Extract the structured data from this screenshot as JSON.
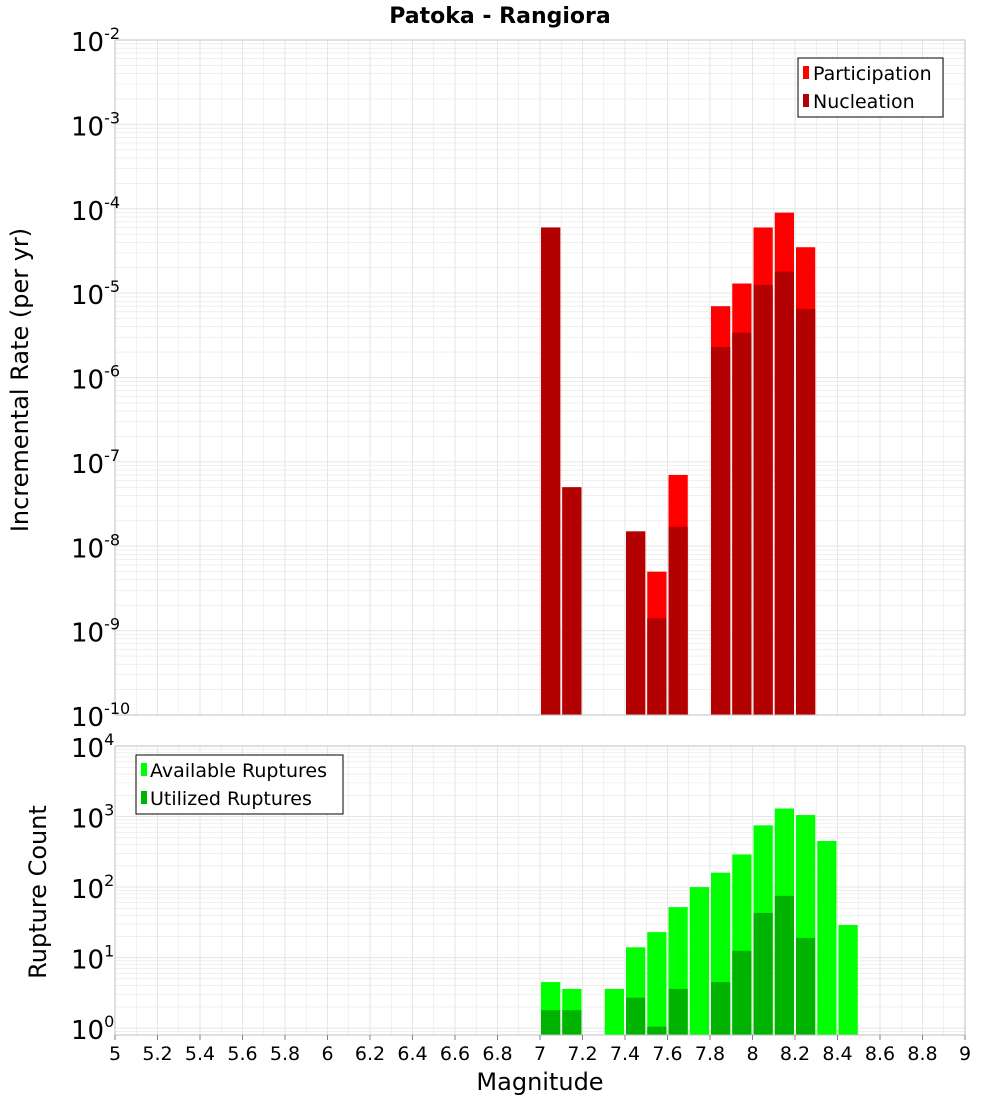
{
  "title": "Patoka - Rangiora",
  "colors": {
    "participation": "#ff0000",
    "nucleation": "#b30000",
    "available": "#00ff00",
    "utilized": "#00b300",
    "grid": "#e6e6e6",
    "frame": "#bfbfbf"
  },
  "chart_data": [
    {
      "type": "bar",
      "scale": "log",
      "ylabel": "Incremental Rate (per yr)",
      "ylim": [
        1e-10,
        0.01
      ],
      "y_ticks": [
        {
          "base": "10",
          "exp": "-10",
          "value": 1e-10
        },
        {
          "base": "10",
          "exp": "-9",
          "value": 1e-09
        },
        {
          "base": "10",
          "exp": "-8",
          "value": 1e-08
        },
        {
          "base": "10",
          "exp": "-7",
          "value": 1e-07
        },
        {
          "base": "10",
          "exp": "-6",
          "value": 1e-06
        },
        {
          "base": "10",
          "exp": "-5",
          "value": 1e-05
        },
        {
          "base": "10",
          "exp": "-4",
          "value": 0.0001
        },
        {
          "base": "10",
          "exp": "-3",
          "value": 0.001
        },
        {
          "base": "10",
          "exp": "-2",
          "value": 0.01
        }
      ],
      "legend_position": "top-right",
      "grid": true,
      "bar_width": 0.1,
      "series": [
        {
          "name": "Participation",
          "x": [
            7.05,
            7.15,
            7.45,
            7.55,
            7.65,
            7.85,
            7.95,
            8.05,
            8.15,
            8.25
          ],
          "values": [
            6e-05,
            5e-08,
            1.5e-08,
            5e-09,
            7e-08,
            7e-06,
            1.3e-05,
            6e-05,
            9e-05,
            3.5e-05
          ]
        },
        {
          "name": "Nucleation",
          "x": [
            7.05,
            7.15,
            7.45,
            7.55,
            7.65,
            7.85,
            7.95,
            8.05,
            8.15,
            8.25
          ],
          "values": [
            6e-05,
            5e-08,
            1.5e-08,
            1.4e-09,
            1.7e-08,
            2.3e-06,
            3.4e-06,
            1.25e-05,
            1.8e-05,
            6.5e-06
          ]
        }
      ]
    },
    {
      "type": "bar",
      "scale": "log",
      "xlabel": "Magnitude",
      "ylabel": "Rupture Count",
      "xlim": [
        5,
        9
      ],
      "ylim": [
        0.8,
        10000
      ],
      "x_ticks": [
        "5",
        "5.2",
        "5.4",
        "5.6",
        "5.8",
        "6",
        "6.2",
        "6.4",
        "6.6",
        "6.8",
        "7",
        "7.2",
        "7.4",
        "7.6",
        "7.8",
        "8",
        "8.2",
        "8.4",
        "8.6",
        "8.8",
        "9"
      ],
      "y_ticks": [
        {
          "base": "10",
          "exp": "0",
          "value": 1
        },
        {
          "base": "10",
          "exp": "1",
          "value": 10
        },
        {
          "base": "10",
          "exp": "2",
          "value": 100
        },
        {
          "base": "10",
          "exp": "3",
          "value": 1000
        },
        {
          "base": "10",
          "exp": "4",
          "value": 10000
        }
      ],
      "legend_position": "top-left",
      "grid": true,
      "bar_width": 0.1,
      "series": [
        {
          "name": "Available Ruptures",
          "x": [
            7.05,
            7.15,
            7.35,
            7.45,
            7.55,
            7.65,
            7.75,
            7.85,
            7.95,
            8.05,
            8.15,
            8.25,
            8.35,
            8.45
          ],
          "values": [
            4.5,
            3.6,
            3.6,
            14,
            23,
            52,
            100,
            160,
            290,
            750,
            1300,
            1050,
            450,
            29
          ]
        },
        {
          "name": "Utilized Ruptures",
          "x": [
            7.05,
            7.15,
            7.45,
            7.55,
            7.65,
            7.85,
            7.95,
            8.05,
            8.15,
            8.25
          ],
          "values": [
            1.8,
            1.8,
            2.7,
            1.05,
            3.6,
            4.5,
            12.5,
            43,
            75,
            19
          ]
        }
      ]
    }
  ]
}
